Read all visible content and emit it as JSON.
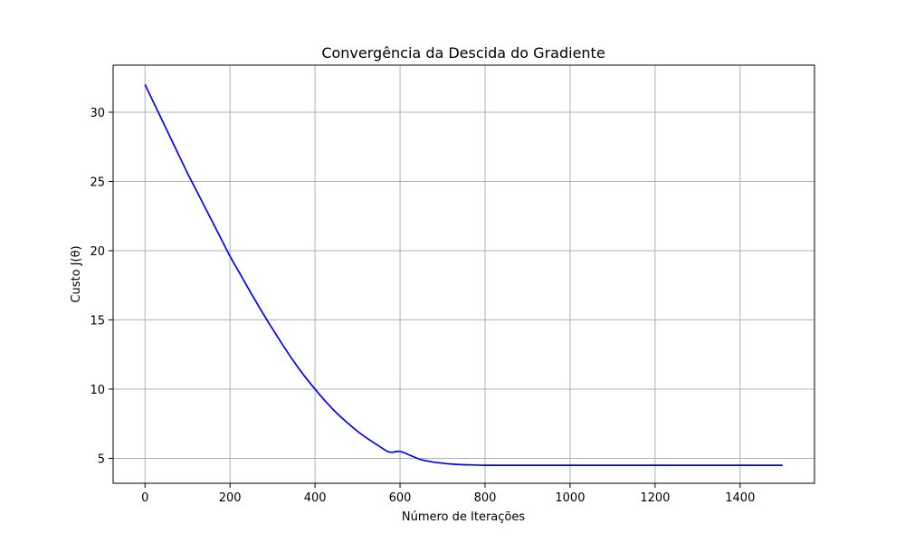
{
  "chart_data": {
    "type": "line",
    "title": "Convergência da Descida do Gradiente",
    "xlabel": "Número de Iterações",
    "ylabel": "Custo J(θ)",
    "xlim": [
      -75,
      1575
    ],
    "ylim": [
      3.2,
      33.4
    ],
    "xticks": [
      0,
      200,
      400,
      600,
      800,
      1000,
      1200,
      1400
    ],
    "yticks": [
      5,
      10,
      15,
      20,
      25,
      30
    ],
    "grid": true,
    "line_color": "#0000ff",
    "grid_color": "#b0b0b0",
    "series": [
      {
        "name": "Custo J(θ)",
        "x": [
          0,
          25,
          50,
          75,
          100,
          125,
          150,
          175,
          200,
          225,
          250,
          275,
          300,
          325,
          350,
          375,
          400,
          425,
          450,
          475,
          500,
          525,
          550,
          575,
          600,
          625,
          650,
          675,
          700,
          725,
          750,
          775,
          800,
          850,
          900,
          1000,
          1100,
          1200,
          1300,
          1400,
          1500
        ],
        "y": [
          32.0,
          30.4,
          28.8,
          27.2,
          25.6,
          24.1,
          22.6,
          21.1,
          19.6,
          18.25,
          16.9,
          15.6,
          14.35,
          13.15,
          12.0,
          10.95,
          10.0,
          9.1,
          8.3,
          7.6,
          6.95,
          6.4,
          5.9,
          5.45,
          5.5,
          5.2,
          4.9,
          4.75,
          4.65,
          4.58,
          4.54,
          4.52,
          4.5,
          4.5,
          4.5,
          4.5,
          4.5,
          4.5,
          4.5,
          4.5,
          4.5
        ]
      }
    ]
  }
}
